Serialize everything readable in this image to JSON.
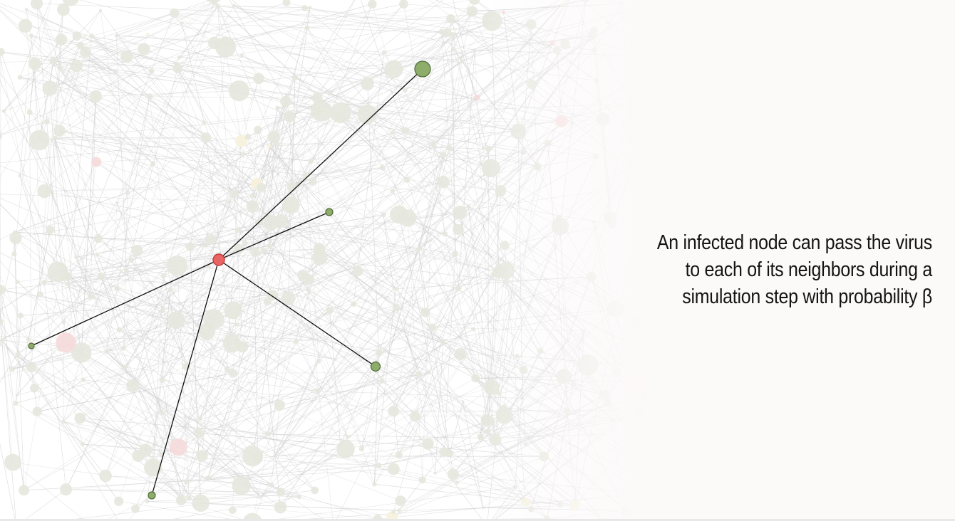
{
  "caption": {
    "lines": [
      "An infected node can pass the virus",
      "to each of its neighbors during a",
      "simulation step with probability β"
    ]
  },
  "colors": {
    "background": "#ffffff",
    "panel": "#fcf9f9",
    "edge_background": "#cfcfcf",
    "node_background": "#e6e8de",
    "infected_fill": "#e86465",
    "infected_stroke": "#c0393b",
    "neighbor_fill": "#8ead6a",
    "neighbor_stroke": "#4f6b37",
    "highlight_edge": "#111111",
    "faint_infected": "#f6dada",
    "faint_susceptible": "#f6f2dc"
  },
  "network": {
    "infected_node": "infected",
    "neighbor_nodes": [
      "neighbor-1",
      "neighbor-2",
      "neighbor-3",
      "neighbor-4",
      "neighbor-5"
    ]
  }
}
